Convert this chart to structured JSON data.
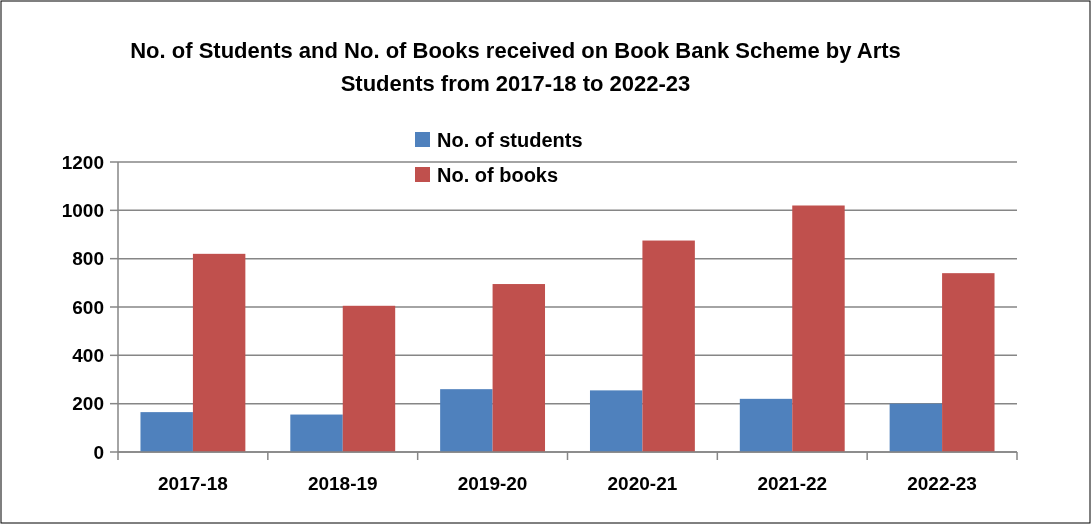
{
  "chart_data": {
    "type": "bar",
    "title": "No. of Students and No. of Books received on Book Bank Scheme by Arts Students from 2017-18 to 2022-23",
    "categories": [
      "2017-18",
      "2018-19",
      "2019-20",
      "2020-21",
      "2021-22",
      "2022-23"
    ],
    "series": [
      {
        "name": "No. of students",
        "color": "#4f81bd",
        "values": [
          165,
          155,
          260,
          255,
          220,
          200
        ]
      },
      {
        "name": "No. of books",
        "color": "#c0504d",
        "values": [
          820,
          605,
          695,
          875,
          1020,
          740
        ]
      }
    ],
    "ylim": [
      0,
      1200
    ],
    "yticks": [
      0,
      200,
      400,
      600,
      800,
      1000,
      1200
    ],
    "grid": "y",
    "legend": "top"
  }
}
